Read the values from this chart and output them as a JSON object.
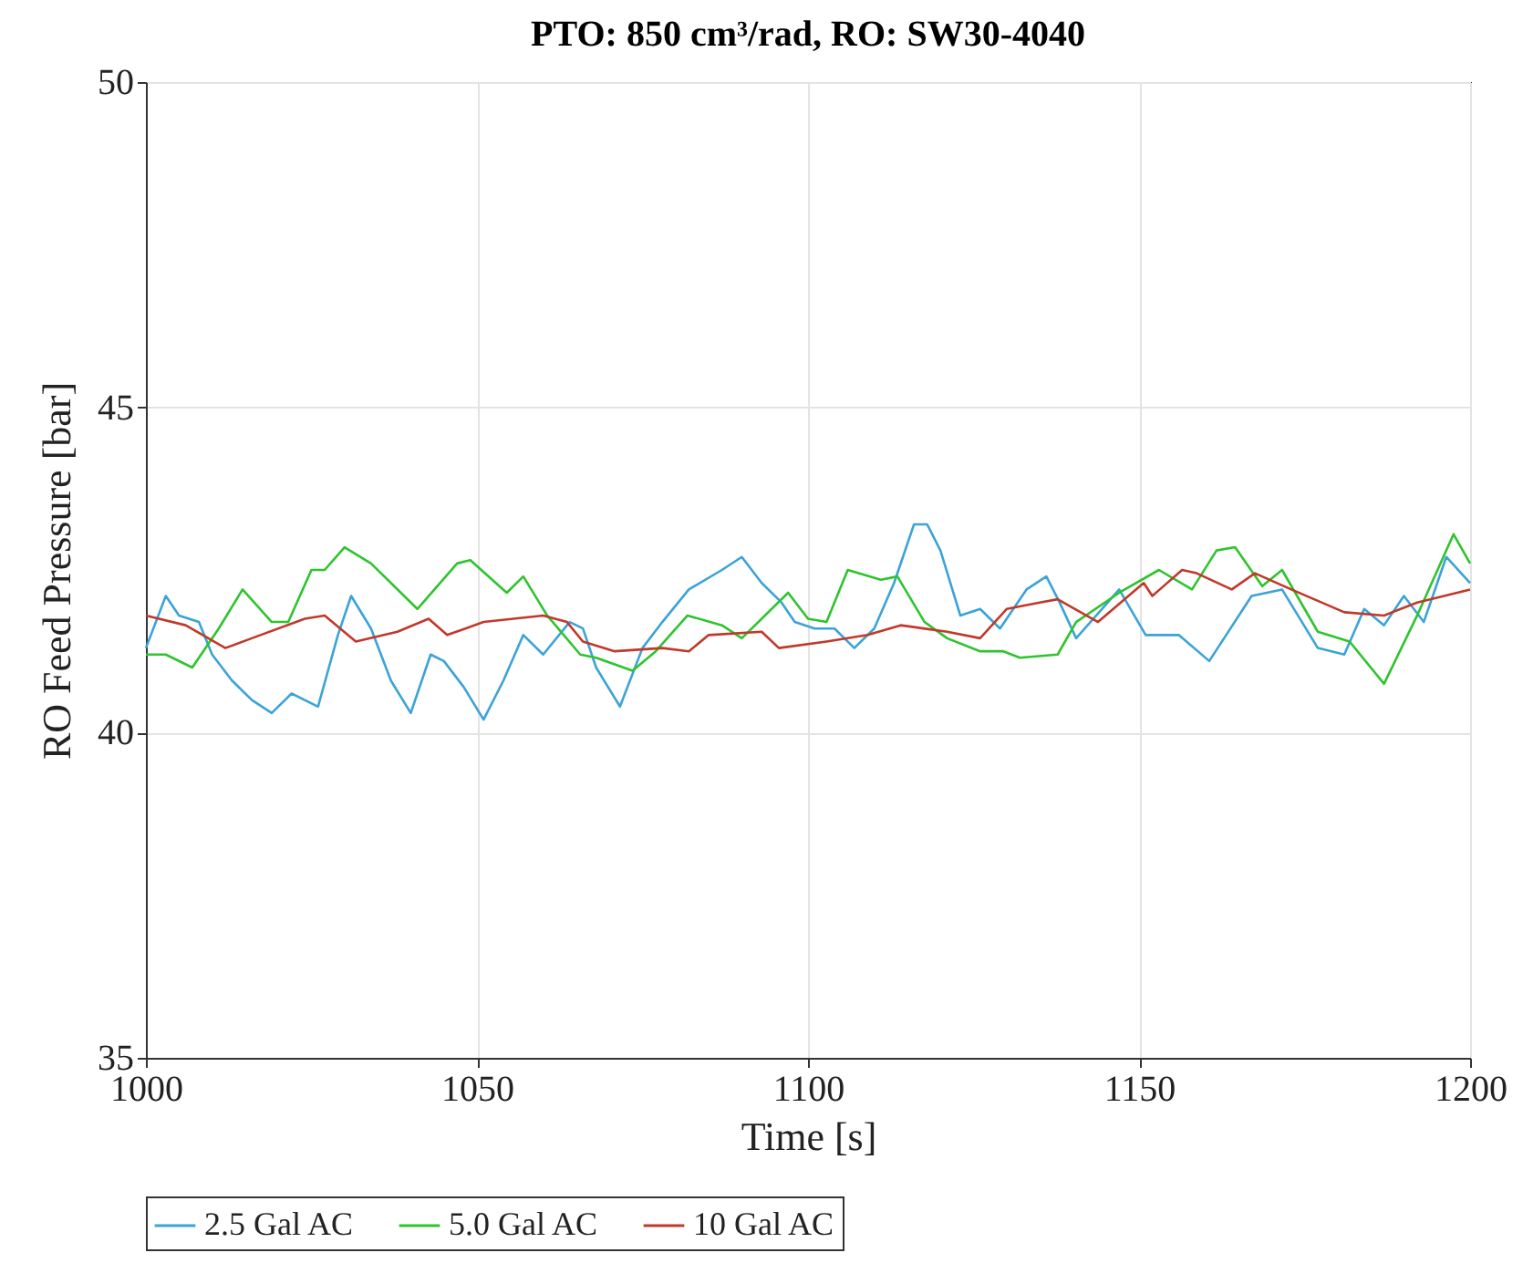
{
  "chart_data": {
    "type": "line",
    "title": "PTO: 850 cm³/rad,  RO: SW30-4040",
    "xlabel": "Time [s]",
    "ylabel": "RO Feed Pressure [bar]",
    "xlim": [
      1000,
      1200
    ],
    "xticks": [
      1000,
      1050,
      1100,
      1150,
      1200
    ],
    "ylim": [
      35,
      50
    ],
    "yticks": [
      35,
      40,
      45,
      50
    ],
    "grid": true,
    "legend": "bottom",
    "line_style": "solid",
    "marker": "none",
    "series": [
      {
        "name": "2.5 Gal AC",
        "color": "#3ba3d8",
        "x": [
          1000,
          1003,
          1005,
          1008,
          1010,
          1013,
          1016,
          1019,
          1022,
          1026,
          1029,
          1031,
          1034,
          1037,
          1040,
          1043,
          1045,
          1048,
          1051,
          1054,
          1057,
          1060,
          1064,
          1066,
          1068,
          1071.6,
          1075,
          1078,
          1082,
          1087,
          1090,
          1093,
          1096,
          1098,
          1101,
          1104,
          1107,
          1110,
          1113,
          1116,
          1118,
          1120,
          1123,
          1126,
          1129,
          1133,
          1136,
          1138,
          1140.5,
          1147,
          1151,
          1156,
          1160.6,
          1167,
          1171.6,
          1177,
          1181,
          1184,
          1187,
          1190,
          1193,
          1196.4,
          1200
        ],
        "values": [
          41.3,
          42.1,
          41.8,
          41.7,
          41.2,
          40.8,
          40.5,
          40.3,
          40.6,
          40.4,
          41.5,
          42.1,
          41.6,
          40.8,
          40.3,
          41.2,
          41.1,
          40.7,
          40.2,
          40.8,
          41.5,
          41.2,
          41.7,
          41.6,
          41.0,
          40.4,
          41.3,
          41.7,
          42.2,
          42.5,
          42.7,
          42.3,
          42.0,
          41.7,
          41.6,
          41.6,
          41.3,
          41.6,
          42.3,
          43.2,
          43.2,
          42.8,
          41.8,
          41.9,
          41.6,
          42.2,
          42.4,
          42.0,
          41.45,
          42.2,
          41.5,
          41.5,
          41.1,
          42.1,
          42.2,
          41.3,
          41.2,
          41.9,
          41.65,
          42.1,
          41.7,
          42.7,
          42.3
        ]
      },
      {
        "name": "5.0 Gal AC",
        "color": "#2ec42e",
        "x": [
          1000,
          1003,
          1007,
          1011,
          1014.6,
          1019,
          1021.5,
          1025,
          1027,
          1030,
          1034,
          1041,
          1047,
          1049,
          1054.5,
          1057,
          1060.6,
          1065.6,
          1068,
          1073.5,
          1077,
          1081.8,
          1087,
          1090,
          1097,
          1100,
          1102.8,
          1106,
          1111,
          1113.5,
          1117.6,
          1121,
          1126,
          1129.5,
          1132,
          1137.7,
          1140.5,
          1147,
          1153,
          1158,
          1161.7,
          1164.5,
          1168.6,
          1171.6,
          1177,
          1181.8,
          1187,
          1192,
          1197.5,
          1200
        ],
        "values": [
          41.2,
          41.2,
          41.0,
          41.6,
          42.2,
          41.7,
          41.7,
          42.5,
          42.5,
          42.85,
          42.6,
          41.9,
          42.6,
          42.65,
          42.15,
          42.4,
          41.8,
          41.2,
          41.15,
          40.95,
          41.25,
          41.8,
          41.65,
          41.45,
          42.15,
          41.75,
          41.7,
          42.5,
          42.35,
          42.4,
          41.7,
          41.45,
          41.25,
          41.25,
          41.15,
          41.2,
          41.7,
          42.15,
          42.5,
          42.2,
          42.8,
          42.85,
          42.25,
          42.5,
          41.55,
          41.4,
          40.75,
          41.8,
          43.05,
          42.6
        ]
      },
      {
        "name": "10 Gal AC",
        "color": "#c0392b",
        "x": [
          1000,
          1006,
          1012,
          1016,
          1024,
          1027,
          1031.7,
          1038,
          1042.7,
          1045.5,
          1051,
          1060,
          1063.6,
          1066,
          1070.8,
          1078,
          1082,
          1085,
          1093,
          1095.6,
          1102.8,
          1109,
          1114,
          1121,
          1126,
          1130,
          1135,
          1137.7,
          1143.8,
          1150.7,
          1152,
          1156.5,
          1158.7,
          1164,
          1167.5,
          1173,
          1181,
          1187,
          1192,
          1200
        ],
        "values": [
          41.8,
          41.65,
          41.3,
          41.45,
          41.75,
          41.8,
          41.4,
          41.55,
          41.75,
          41.5,
          41.7,
          41.8,
          41.7,
          41.4,
          41.25,
          41.3,
          41.25,
          41.5,
          41.55,
          41.3,
          41.4,
          41.5,
          41.65,
          41.55,
          41.45,
          41.9,
          42.0,
          42.05,
          41.7,
          42.3,
          42.1,
          42.5,
          42.45,
          42.2,
          42.45,
          42.2,
          41.85,
          41.8,
          42.0,
          42.2
        ]
      }
    ]
  }
}
